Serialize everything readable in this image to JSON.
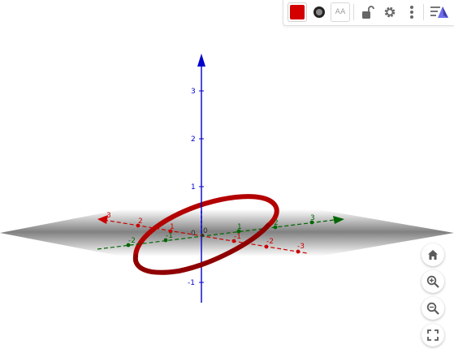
{
  "toolbar": {
    "color_swatch": "#d40000",
    "label_button_text": "AA",
    "icons": [
      "color-swatch-icon",
      "point-style-icon",
      "label-style-icon",
      "lock-icon",
      "gear-icon",
      "more-vert-icon",
      "view-3d-icon"
    ]
  },
  "axes": {
    "x": {
      "color": "#cc0000",
      "ticks": [
        "3",
        "2",
        "1",
        "-1",
        "-2",
        "-3"
      ]
    },
    "y": {
      "color": "#006600",
      "ticks": [
        "-2",
        "-1",
        "1",
        "2",
        "3"
      ]
    },
    "z": {
      "color": "#0000cc",
      "ticks": [
        "3",
        "2",
        "1",
        "-1"
      ]
    },
    "origin_label": "0"
  },
  "curve": {
    "color": "#a00000"
  },
  "nav": {
    "icons": [
      "home-icon",
      "zoom-in-icon",
      "zoom-out-icon",
      "fullscreen-icon"
    ]
  }
}
